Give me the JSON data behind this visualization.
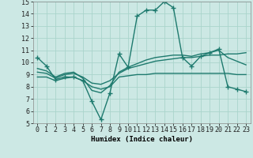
{
  "xlabel": "Humidex (Indice chaleur)",
  "background_color": "#cce8e4",
  "grid_color": "#aad4cc",
  "line_color": "#1e7a6e",
  "xlim": [
    -0.5,
    23.5
  ],
  "ylim": [
    5,
    15
  ],
  "xticks": [
    0,
    1,
    2,
    3,
    4,
    5,
    6,
    7,
    8,
    9,
    10,
    11,
    12,
    13,
    14,
    15,
    16,
    17,
    18,
    19,
    20,
    21,
    22,
    23
  ],
  "yticks": [
    5,
    6,
    7,
    8,
    9,
    10,
    11,
    12,
    13,
    14,
    15
  ],
  "series": [
    {
      "x": [
        0,
        1,
        2,
        3,
        4,
        5,
        6,
        7,
        8,
        9,
        10,
        11,
        12,
        13,
        14,
        15,
        16,
        17,
        18,
        19,
        20,
        21,
        22,
        23
      ],
      "y": [
        10.4,
        9.7,
        8.6,
        8.8,
        8.8,
        8.5,
        6.8,
        5.3,
        7.5,
        10.7,
        9.6,
        13.8,
        14.3,
        14.3,
        15.0,
        14.5,
        10.4,
        9.7,
        10.5,
        10.8,
        11.1,
        8.0,
        7.8,
        7.6
      ],
      "marker": "+",
      "markersize": 4,
      "linewidth": 1.0
    },
    {
      "x": [
        0,
        1,
        2,
        3,
        4,
        5,
        6,
        7,
        8,
        9,
        10,
        11,
        12,
        13,
        14,
        15,
        16,
        17,
        18,
        19,
        20,
        21,
        22,
        23
      ],
      "y": [
        9.5,
        9.3,
        8.8,
        9.1,
        9.2,
        8.7,
        7.7,
        7.5,
        8.1,
        9.2,
        9.6,
        9.9,
        10.2,
        10.4,
        10.5,
        10.6,
        10.6,
        10.5,
        10.7,
        10.8,
        11.0,
        10.4,
        10.1,
        9.8
      ],
      "marker": null,
      "markersize": 0,
      "linewidth": 1.0
    },
    {
      "x": [
        0,
        1,
        2,
        3,
        4,
        5,
        6,
        7,
        8,
        9,
        10,
        11,
        12,
        13,
        14,
        15,
        16,
        17,
        18,
        19,
        20,
        21,
        22,
        23
      ],
      "y": [
        9.2,
        9.1,
        8.7,
        9.0,
        9.1,
        8.8,
        8.3,
        8.2,
        8.5,
        9.1,
        9.5,
        9.7,
        9.9,
        10.1,
        10.2,
        10.3,
        10.4,
        10.4,
        10.5,
        10.6,
        10.6,
        10.7,
        10.7,
        10.8
      ],
      "marker": null,
      "markersize": 0,
      "linewidth": 1.0
    },
    {
      "x": [
        0,
        1,
        2,
        3,
        4,
        5,
        6,
        7,
        8,
        9,
        10,
        11,
        12,
        13,
        14,
        15,
        16,
        17,
        18,
        19,
        20,
        21,
        22,
        23
      ],
      "y": [
        8.8,
        8.8,
        8.5,
        8.7,
        8.8,
        8.5,
        8.0,
        7.8,
        8.0,
        8.8,
        8.9,
        9.0,
        9.0,
        9.1,
        9.1,
        9.1,
        9.1,
        9.1,
        9.1,
        9.1,
        9.1,
        9.1,
        9.0,
        9.0
      ],
      "marker": null,
      "markersize": 0,
      "linewidth": 1.0
    }
  ]
}
